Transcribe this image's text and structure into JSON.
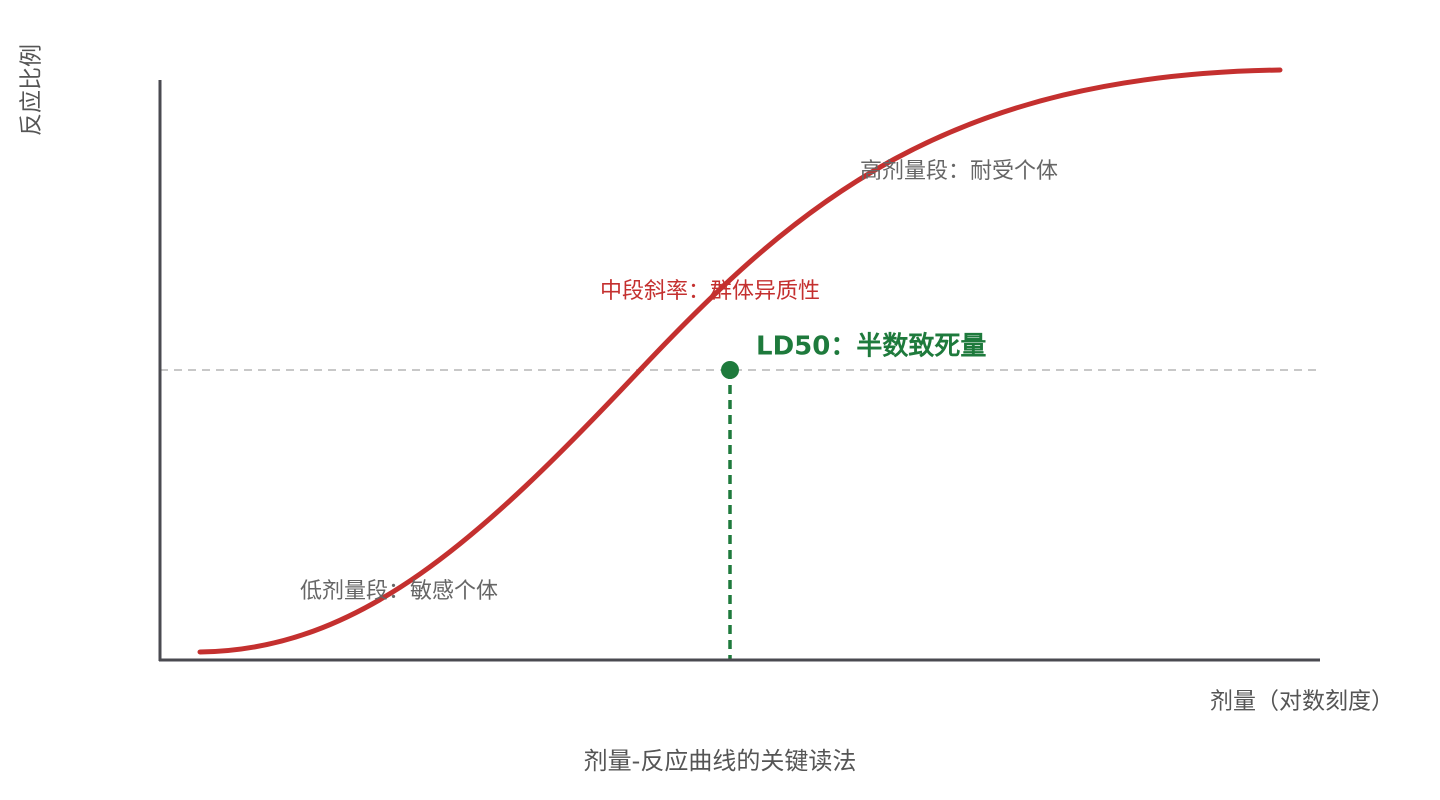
{
  "axes": {
    "y_label": "反应比例",
    "x_label": "剂量（对数刻度）"
  },
  "annotations": {
    "high": "高剂量段：耐受个体",
    "slope": "中段斜率：群体异质性",
    "ld50": "LD50：半数致死量",
    "low": "低剂量段：敏感个体"
  },
  "caption": "剂量-反应曲线的关键读法"
}
